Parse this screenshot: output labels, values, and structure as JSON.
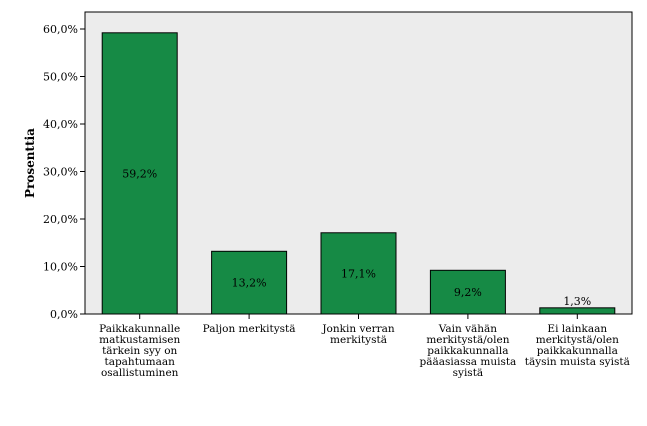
{
  "chart_data": {
    "type": "bar",
    "ylabel": "Prosenttia",
    "xlabel": "",
    "ylim": [
      0,
      60
    ],
    "yticks": [
      0,
      10,
      20,
      30,
      40,
      50,
      60
    ],
    "ytick_labels": [
      "0,0%",
      "10,0%",
      "20,0%",
      "30,0%",
      "40,0%",
      "50,0%",
      "60,0%"
    ],
    "categories": [
      [
        "Paikkakunnalle",
        "matkustamisen",
        "tärkein syy on",
        "tapahtumaan",
        "osallistuminen"
      ],
      [
        "Paljon merkitystä"
      ],
      [
        "Jonkin verran",
        "merkitystä"
      ],
      [
        "Vain vähän",
        "merkitystä/olen",
        "paikkakunnalla",
        "pääasiassa muista",
        "syistä"
      ],
      [
        "Ei lainkaan",
        "merkitystä/olen",
        "paikkakunnalla",
        "täysin muista syistä"
      ]
    ],
    "values": [
      59.2,
      13.2,
      17.1,
      9.2,
      1.3
    ],
    "data_labels": [
      "59,2%",
      "13,2%",
      "17,1%",
      "9,2%",
      "1,3%"
    ],
    "colors": {
      "bar": "#168a45",
      "plot_bg": "#ececec",
      "frame": "#000000"
    },
    "grid": false,
    "legend": "none"
  }
}
